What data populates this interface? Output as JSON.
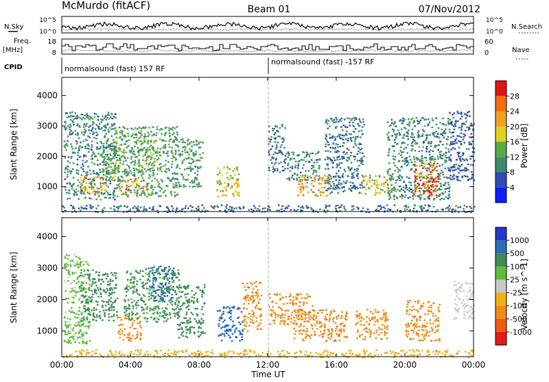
{
  "header": {
    "station_title": "McMurdo (fitACF)",
    "beam_label": "Beam 01",
    "date_label": "07/Nov/2012"
  },
  "strips": {
    "noise": {
      "left_label": "N.Sky",
      "right_label": "N.Search",
      "tick_top": "10^5",
      "tick_bottom": "10^0"
    },
    "freq": {
      "left_label_line1": "Freq.",
      "left_label_line2": "[MHz]",
      "left_ticks": [
        "18",
        "8"
      ],
      "right_label": "Nave",
      "right_ticks": [
        "60",
        "0"
      ]
    },
    "cpid": {
      "label": "CPID",
      "segments": [
        "normalsound (fast) 157 RF",
        "normalsound (fast) -157 RF"
      ]
    }
  },
  "axes": {
    "xlabel": "Time UT",
    "ylabel": "Slant Range [km]",
    "x_ticks": [
      "00:00",
      "04:00",
      "08:00",
      "12:00",
      "16:00",
      "20:00",
      "00:00"
    ],
    "y_ticks": [
      "1000",
      "2000",
      "3000",
      "4000"
    ]
  },
  "colorbars": {
    "power": {
      "label": "Power [dB]",
      "ticks": [
        "4",
        "8",
        "12",
        "16",
        "20",
        "24",
        "28"
      ],
      "colors": [
        "#0a1eff",
        "#2f4bb4",
        "#3d8a73",
        "#5aaa46",
        "#e0d21e",
        "#f0a020",
        "#f26c10",
        "#e11414"
      ]
    },
    "velocity": {
      "label": "Velocity [m s^-1]",
      "ticks": [
        "1000",
        "500",
        "100",
        "25",
        "-25",
        "-100",
        "-500",
        "-1000"
      ],
      "colors": [
        "#2238c8",
        "#2a6fb4",
        "#3f8a55",
        "#58c034",
        "#c8c8c8",
        "#f0b010",
        "#f08a18",
        "#f05a14",
        "#e01c14"
      ]
    }
  },
  "chart_data": [
    {
      "type": "heatmap",
      "title": "Power [dB]",
      "xlabel": "Time UT",
      "ylabel": "Slant Range [km]",
      "xlim": [
        "00:00",
        "24:00"
      ],
      "ylim": [
        180,
        4600
      ],
      "clim": [
        0,
        32
      ],
      "echo_regions": [
        {
          "t_start": 0.1,
          "t_end": 3.1,
          "r_min": 600,
          "r_max": 3500,
          "value": 10
        },
        {
          "t_start": 1.0,
          "t_end": 2.6,
          "r_min": 750,
          "r_max": 1350,
          "value": 20
        },
        {
          "t_start": 2.3,
          "t_end": 3.4,
          "r_min": 1200,
          "r_max": 2500,
          "value": 14
        },
        {
          "t_start": 3.3,
          "t_end": 5.0,
          "r_min": 750,
          "r_max": 1250,
          "value": 22
        },
        {
          "t_start": 3.0,
          "t_end": 6.7,
          "r_min": 700,
          "r_max": 3000,
          "value": 12
        },
        {
          "t_start": 4.3,
          "t_end": 5.5,
          "r_min": 1700,
          "r_max": 2600,
          "value": 15
        },
        {
          "t_start": 6.5,
          "t_end": 8.2,
          "r_min": 1000,
          "r_max": 2600,
          "value": 12
        },
        {
          "t_start": 8.9,
          "t_end": 10.3,
          "r_min": 700,
          "r_max": 1700,
          "value": 18
        },
        {
          "t_start": 12.0,
          "t_end": 13.0,
          "r_min": 1500,
          "r_max": 3100,
          "value": 9
        },
        {
          "t_start": 13.0,
          "t_end": 15.0,
          "r_min": 1200,
          "r_max": 2200,
          "value": 10
        },
        {
          "t_start": 13.7,
          "t_end": 15.6,
          "r_min": 700,
          "r_max": 1400,
          "value": 21
        },
        {
          "t_start": 15.3,
          "t_end": 17.6,
          "r_min": 800,
          "r_max": 3300,
          "value": 9
        },
        {
          "t_start": 17.4,
          "t_end": 19.2,
          "r_min": 750,
          "r_max": 1400,
          "value": 18
        },
        {
          "t_start": 18.9,
          "t_end": 22.6,
          "r_min": 600,
          "r_max": 3300,
          "value": 10
        },
        {
          "t_start": 20.5,
          "t_end": 21.9,
          "r_min": 700,
          "r_max": 1900,
          "value": 24
        },
        {
          "t_start": 21.0,
          "t_end": 21.8,
          "r_min": 800,
          "r_max": 1300,
          "value": 29
        },
        {
          "t_start": 22.5,
          "t_end": 24.0,
          "r_min": 1200,
          "r_max": 3500,
          "value": 7
        },
        {
          "t_start": 0.0,
          "t_end": 24.0,
          "r_min": 180,
          "r_max": 420,
          "value": 8
        }
      ]
    },
    {
      "type": "heatmap",
      "title": "Velocity [m s^-1]",
      "xlabel": "Time UT",
      "ylabel": "Slant Range [km]",
      "xlim": [
        "00:00",
        "24:00"
      ],
      "ylim": [
        180,
        4600
      ],
      "clim": [
        -1000,
        1000
      ],
      "echo_regions": [
        {
          "t_start": 0.1,
          "t_end": 1.6,
          "r_min": 600,
          "r_max": 3500,
          "value": 30
        },
        {
          "t_start": 1.0,
          "t_end": 3.2,
          "r_min": 1300,
          "r_max": 3000,
          "value": 150
        },
        {
          "t_start": 3.2,
          "t_end": 4.6,
          "r_min": 700,
          "r_max": 1500,
          "value": -300
        },
        {
          "t_start": 3.6,
          "t_end": 6.8,
          "r_min": 1300,
          "r_max": 3000,
          "value": 120
        },
        {
          "t_start": 5.0,
          "t_end": 6.5,
          "r_min": 1900,
          "r_max": 3100,
          "value": 600
        },
        {
          "t_start": 6.7,
          "t_end": 8.3,
          "r_min": 800,
          "r_max": 2500,
          "value": 300
        },
        {
          "t_start": 9.0,
          "t_end": 10.5,
          "r_min": 700,
          "r_max": 1800,
          "value": 800
        },
        {
          "t_start": 10.5,
          "t_end": 11.6,
          "r_min": 1000,
          "r_max": 2600,
          "value": -400
        },
        {
          "t_start": 13.5,
          "t_end": 16.6,
          "r_min": 700,
          "r_max": 1700,
          "value": -400
        },
        {
          "t_start": 12.0,
          "t_end": 14.6,
          "r_min": 1200,
          "r_max": 2200,
          "value": -150
        },
        {
          "t_start": 17.0,
          "t_end": 19.0,
          "r_min": 750,
          "r_max": 1700,
          "value": -350
        },
        {
          "t_start": 20.0,
          "t_end": 22.0,
          "r_min": 700,
          "r_max": 2000,
          "value": -300
        },
        {
          "t_start": 22.8,
          "t_end": 24.0,
          "r_min": 1400,
          "r_max": 2600,
          "value": 0
        },
        {
          "t_start": 0.0,
          "t_end": 24.0,
          "r_min": 180,
          "r_max": 420,
          "value": -80
        }
      ]
    }
  ]
}
